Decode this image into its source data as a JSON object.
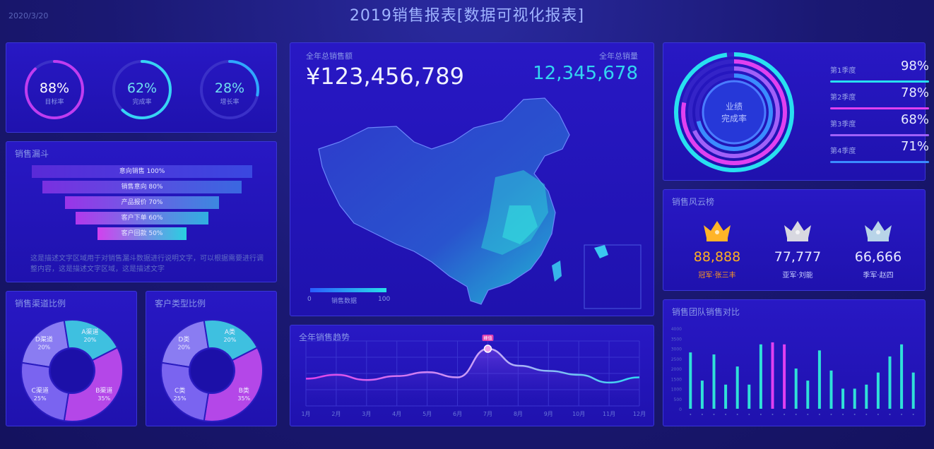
{
  "header": {
    "title": "2019销售报表[数据可视化报表]",
    "date": "2020/3/20"
  },
  "rings": [
    {
      "pct": "88%",
      "label": "目标率",
      "value": 0.88,
      "color": "#c03cf0",
      "color2": "#37d4f4"
    },
    {
      "pct": "62%",
      "label": "完成率",
      "value": 0.62,
      "color": "#37d4f4",
      "color2": "#37d4f4"
    },
    {
      "pct": "28%",
      "label": "增长率",
      "value": 0.28,
      "color": "#2fa8ff",
      "color2": "#2fa8ff"
    }
  ],
  "funnel": {
    "title": "销售漏斗",
    "bars": [
      {
        "label": "意向销售 100%"
      },
      {
        "label": "销售意向 80%"
      },
      {
        "label": "产品报价 70%"
      },
      {
        "label": "客户下单 60%"
      },
      {
        "label": "客户回款 50%"
      }
    ],
    "note": "这是描述文字区域用于对销售漏斗数据进行说明文字，可以根据需要进行调整内容，这是描述文字区域，这是描述文字"
  },
  "pie1": {
    "title": "销售渠道比例",
    "slices": [
      {
        "name": "D渠道",
        "pct": "20%",
        "value": 20,
        "color": "#8a7cf2"
      },
      {
        "name": "A渠道",
        "pct": "20%",
        "value": 20,
        "color": "#3ec0e0"
      },
      {
        "name": "B渠道",
        "pct": "35%",
        "value": 35,
        "color": "#b447e8"
      },
      {
        "name": "C渠道",
        "pct": "25%",
        "value": 25,
        "color": "#7a64f0"
      }
    ]
  },
  "pie2": {
    "title": "客户类型比例",
    "slices": [
      {
        "name": "D类",
        "pct": "20%",
        "value": 20,
        "color": "#8a7cf2"
      },
      {
        "name": "A类",
        "pct": "20%",
        "value": 20,
        "color": "#3ec0e0"
      },
      {
        "name": "B类",
        "pct": "35%",
        "value": 35,
        "color": "#b447e8"
      },
      {
        "name": "C类",
        "pct": "25%",
        "value": 25,
        "color": "#7a64f0"
      }
    ]
  },
  "center": {
    "sales_label": "全年总销售额",
    "sales_value": "¥123,456,789",
    "count_label": "全年总销量",
    "count_value": "12,345,678",
    "legend_low": "0",
    "legend_text": "销售数据",
    "legend_high": "100"
  },
  "trend": {
    "title": "全年销售趋势",
    "peak_label": "峰值",
    "months": [
      "1月",
      "2月",
      "3月",
      "4月",
      "5月",
      "6月",
      "7月",
      "8月",
      "9月",
      "10月",
      "11月",
      "12月"
    ],
    "values": [
      42,
      48,
      40,
      46,
      52,
      44,
      88,
      62,
      54,
      48,
      36,
      44
    ]
  },
  "completion": {
    "center_line1": "业绩",
    "center_line2": "完成率",
    "quarters": [
      {
        "label": "第1季度",
        "pct": "98%",
        "value": 0.98,
        "color": "#28e0f0"
      },
      {
        "label": "第2季度",
        "pct": "78%",
        "value": 0.78,
        "color": "#e040f0"
      },
      {
        "label": "第3季度",
        "pct": "68%",
        "value": 0.68,
        "color": "#a060f8"
      },
      {
        "label": "第4季度",
        "pct": "71%",
        "value": 0.71,
        "color": "#3a8cff"
      }
    ]
  },
  "ranking": {
    "title": "销售风云榜",
    "items": [
      {
        "value": "88,888",
        "name": "冠军·张三丰",
        "color": "#ffb020"
      },
      {
        "value": "77,777",
        "name": "亚军·刘能",
        "color": "#e6e8ff"
      },
      {
        "value": "66,666",
        "name": "季军·赵四",
        "color": "#e6e8ff"
      }
    ]
  },
  "team": {
    "title": "销售团队销售对比",
    "yticks": [
      "4000",
      "3500",
      "3000",
      "2500",
      "2000",
      "1500",
      "1000",
      "500",
      "0"
    ],
    "values": [
      2800,
      1400,
      2700,
      1200,
      2100,
      1200,
      3200,
      3300,
      3200,
      2000,
      1400,
      2900,
      1900,
      1000,
      1000,
      1200,
      1800,
      2600,
      3200,
      1800
    ],
    "highlight": [
      7,
      8
    ]
  }
}
